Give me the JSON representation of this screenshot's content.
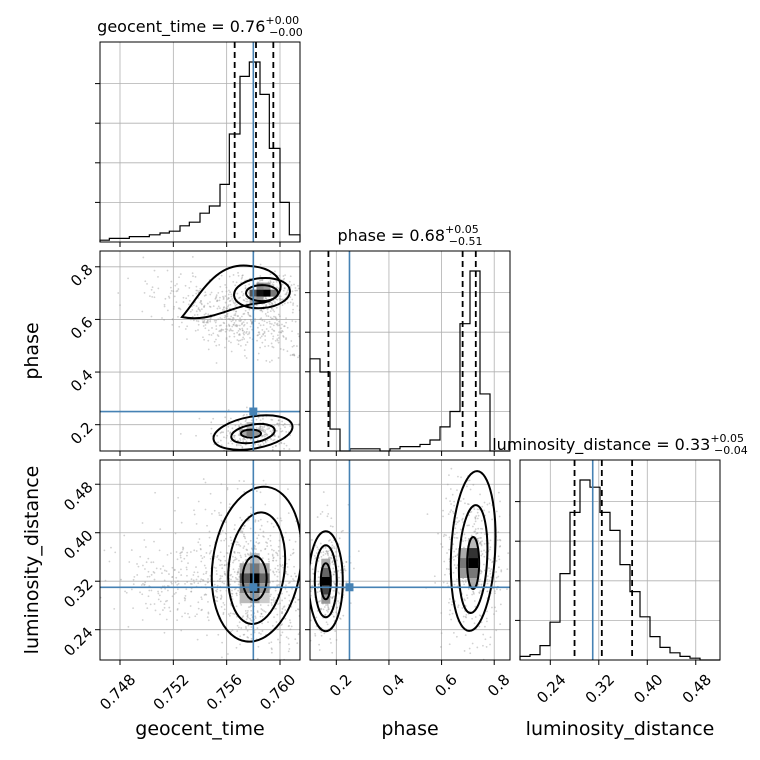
{
  "chart_data": {
    "type": "corner",
    "parameters": [
      "geocent_time",
      "phase",
      "luminosity_distance"
    ],
    "truths": {
      "geocent_time": 0.758,
      "phase": 0.25,
      "luminosity_distance": 0.31
    },
    "titles": [
      {
        "param": "geocent_time",
        "text": "geocent_time = 0.76",
        "sup": "+0.00",
        "sub": "−0.00"
      },
      {
        "param": "phase",
        "text": "phase = 0.68",
        "sup": "+0.05",
        "sub": "−0.51"
      },
      {
        "param": "luminosity_distance",
        "text": "luminosity_distance = 0.33",
        "sup": "+0.05",
        "sub": "−0.04"
      }
    ],
    "axes": {
      "geocent_time": {
        "range": [
          0.7465,
          0.7615
        ],
        "ticks": [
          "0.748",
          "0.752",
          "0.756",
          "0.760"
        ],
        "tick_values": [
          0.748,
          0.752,
          0.756,
          0.76
        ]
      },
      "phase": {
        "range": [
          0.1,
          0.86
        ],
        "ticks": [
          "0.2",
          "0.4",
          "0.6",
          "0.8"
        ],
        "tick_values": [
          0.2,
          0.4,
          0.6,
          0.8
        ]
      },
      "luminosity_distance": {
        "range": [
          0.19,
          0.52
        ],
        "ticks": [
          "0.24",
          "0.32",
          "0.40",
          "0.48"
        ],
        "tick_values": [
          0.24,
          0.32,
          0.4,
          0.48
        ]
      }
    },
    "quantiles": {
      "geocent_time": [
        0.7566,
        0.7582,
        0.7595
      ],
      "phase": [
        0.17,
        0.68,
        0.73
      ],
      "luminosity_distance": [
        0.28,
        0.325,
        0.375
      ]
    },
    "histograms": {
      "geocent_time": {
        "edges": [
          0.7465,
          0.7472,
          0.748,
          0.7487,
          0.7495,
          0.7502,
          0.751,
          0.7517,
          0.7525,
          0.7532,
          0.754,
          0.7547,
          0.7555,
          0.7562,
          0.757,
          0.7577,
          0.7585,
          0.7592,
          0.76,
          0.7607,
          0.7615
        ],
        "counts": [
          1,
          2,
          2,
          3,
          3,
          4,
          5,
          6,
          9,
          11,
          16,
          20,
          32,
          60,
          92,
          100,
          82,
          52,
          22,
          4
        ]
      },
      "phase": {
        "edges": [
          0.1,
          0.138,
          0.176,
          0.214,
          0.252,
          0.29,
          0.328,
          0.366,
          0.404,
          0.442,
          0.48,
          0.518,
          0.556,
          0.594,
          0.632,
          0.67,
          0.708,
          0.746,
          0.784,
          0.822,
          0.86
        ],
        "counts": [
          42,
          36,
          10,
          0,
          1,
          1,
          1,
          0,
          1,
          2,
          2,
          3,
          5,
          11,
          18,
          58,
          82,
          26,
          0,
          0
        ]
      },
      "luminosity_distance": {
        "edges": [
          0.19,
          0.2065,
          0.223,
          0.2395,
          0.256,
          0.2725,
          0.289,
          0.3055,
          0.322,
          0.3385,
          0.355,
          0.3715,
          0.388,
          0.4045,
          0.421,
          0.4375,
          0.454,
          0.4705,
          0.487,
          0.5035,
          0.52
        ],
        "counts": [
          2,
          3,
          8,
          21,
          48,
          82,
          100,
          96,
          82,
          72,
          53,
          38,
          24,
          13,
          7,
          4,
          2,
          1,
          0,
          0
        ]
      }
    },
    "grid": true
  }
}
